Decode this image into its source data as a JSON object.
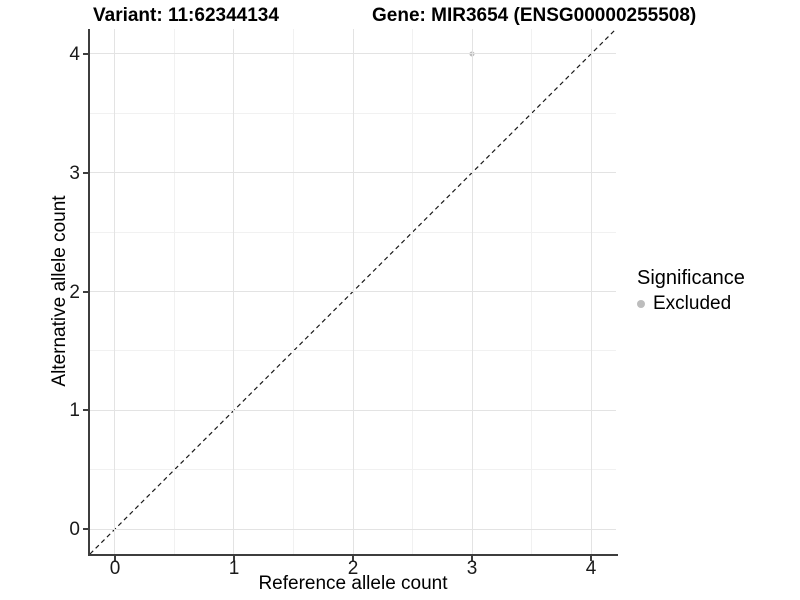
{
  "titles": {
    "variant": "Variant: 11:62344134",
    "gene": "Gene: MIR3654 (ENSG00000255508)"
  },
  "chart_data": {
    "type": "scatter",
    "xlabel": "Reference allele count",
    "ylabel": "Alternative allele count",
    "xlim": [
      -0.21,
      4.21
    ],
    "ylim": [
      -0.21,
      4.21
    ],
    "xticks": [
      0,
      1,
      2,
      3,
      4
    ],
    "yticks": [
      0,
      1,
      2,
      3,
      4
    ],
    "minor_xticks": [
      0.5,
      1.5,
      2.5,
      3.5
    ],
    "minor_yticks": [
      0.5,
      1.5,
      2.5,
      3.5
    ],
    "grid": true,
    "points": [
      {
        "x": 3,
        "y": 4,
        "series": "Excluded"
      }
    ],
    "reference_line": {
      "style": "dashed",
      "from": [
        -0.21,
        -0.21
      ],
      "to": [
        4.21,
        4.21
      ]
    },
    "legend": {
      "title": "Significance",
      "position": "right",
      "entries": [
        {
          "label": "Excluded",
          "color": "#bdbdbd"
        }
      ]
    },
    "colors": {
      "point": "#bdbdbd",
      "grid_major": "#e3e3e3",
      "grid_minor": "#f1f1f1",
      "axis_line": "#3d3d3d",
      "dashed_line": "#1a1a1a"
    }
  }
}
